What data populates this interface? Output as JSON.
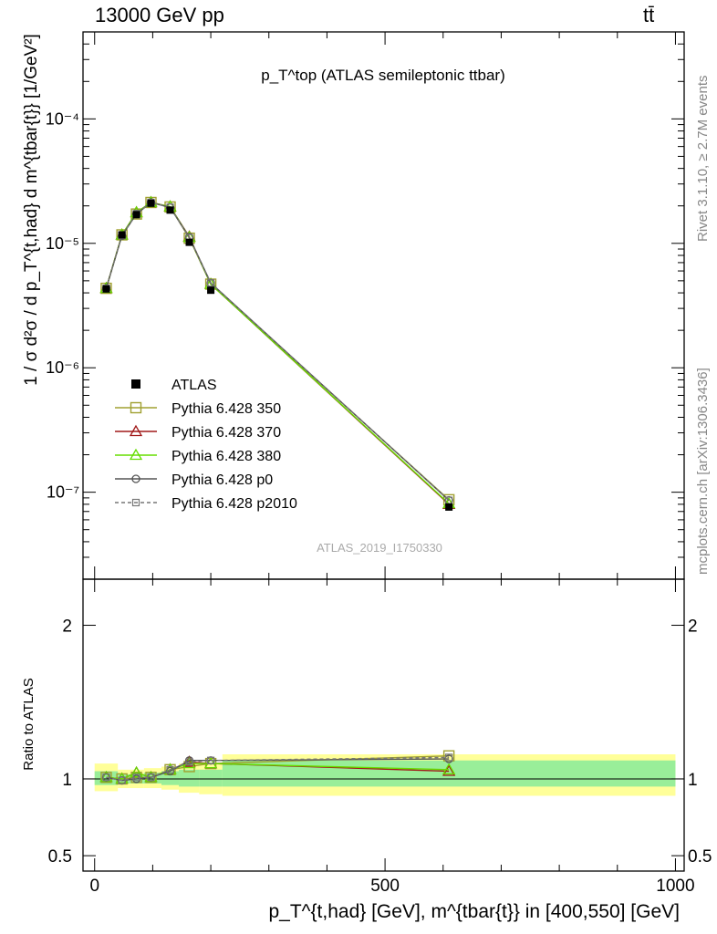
{
  "header": {
    "left": "13000 GeV pp",
    "right": "tt̄"
  },
  "side_labels": {
    "rivet": "Rivet 3.1.10, ≥ 2.7M events",
    "mcplots": "mcplots.cern.ch [arXiv:1306.3436]"
  },
  "chart_data": {
    "type": "line",
    "title": "p_T^top (ATLAS semileptonic ttbar)",
    "analysis_id": "ATLAS_2019_I1750330",
    "ylabel": "1 / σ d²σ / d p_T^{t,had} d m^{tbar{t}} [1/GeV²]",
    "xlabel": "p_T^{t,had} [GeV], m^{tbar{t}} in [400,550] [GeV]",
    "ratio_ylabel": "Ratio to ATLAS",
    "xlim": [
      -20,
      1015
    ],
    "ylim": [
      2e-08,
      0.0005
    ],
    "yscale": "log",
    "ratio_ylim": [
      0.4,
      2.3
    ],
    "xticks": [
      0,
      500,
      1000
    ],
    "yticks_main": [
      {
        "value": 1e-07,
        "label": "10⁻⁷"
      },
      {
        "value": 1e-06,
        "label": "10⁻⁶"
      },
      {
        "value": 1e-05,
        "label": "10⁻⁵"
      },
      {
        "value": 0.0001,
        "label": "10⁻⁴"
      }
    ],
    "yticks_ratio": [
      {
        "value": 0.5,
        "label": "0.5"
      },
      {
        "value": 1,
        "label": "1"
      },
      {
        "value": 2,
        "label": "2"
      }
    ],
    "legend_position": "lower-left",
    "x": [
      20,
      47,
      72,
      97,
      130,
      163,
      200,
      610
    ],
    "bin_edges": [
      0,
      40,
      60,
      85,
      115,
      145,
      180,
      220,
      1000
    ],
    "data": {
      "name": "ATLAS",
      "values": [
        4.3e-06,
        1.17e-05,
        1.7e-05,
        2.1e-05,
        1.85e-05,
        1.02e-05,
        4.2e-06,
        7.6e-08
      ]
    },
    "bands": {
      "stat": [
        [
          0.96,
          1.05
        ],
        [
          0.97,
          1.03
        ],
        [
          0.97,
          1.03
        ],
        [
          0.97,
          1.04
        ],
        [
          0.96,
          1.05
        ],
        [
          0.95,
          1.06
        ],
        [
          0.95,
          1.06
        ],
        [
          0.95,
          1.12
        ]
      ],
      "total": [
        [
          0.92,
          1.1
        ],
        [
          0.94,
          1.06
        ],
        [
          0.94,
          1.06
        ],
        [
          0.94,
          1.07
        ],
        [
          0.93,
          1.08
        ],
        [
          0.91,
          1.1
        ],
        [
          0.9,
          1.1
        ],
        [
          0.89,
          1.16
        ]
      ]
    },
    "series": [
      {
        "name": "Pythia 6.428 350",
        "color": "#a0a030",
        "marker": "square-open",
        "dash": "solid",
        "values": [
          4.35e-06,
          1.17e-05,
          1.72e-05,
          2.13e-05,
          1.96e-05,
          1.1e-05,
          4.7e-06,
          8.7e-08
        ],
        "ratio": [
          1.01,
          1.0,
          1.01,
          1.01,
          1.06,
          1.08,
          1.1,
          1.15
        ]
      },
      {
        "name": "Pythia 6.428 370",
        "color": "#a01818",
        "marker": "triangle-open",
        "dash": "solid",
        "values": [
          4.35e-06,
          1.17e-05,
          1.77e-05,
          2.13e-05,
          1.97e-05,
          1.13e-05,
          4.7e-06,
          8e-08
        ],
        "ratio": [
          1.01,
          1.0,
          1.04,
          1.01,
          1.06,
          1.11,
          1.1,
          1.05
        ]
      },
      {
        "name": "Pythia 6.428 380",
        "color": "#66dd00",
        "marker": "triangle-open",
        "dash": "solid",
        "values": [
          4.35e-06,
          1.17e-05,
          1.77e-05,
          2.13e-05,
          1.97e-05,
          1.12e-05,
          4.7e-06,
          8.1e-08
        ],
        "ratio": [
          1.01,
          1.0,
          1.04,
          1.01,
          1.06,
          1.1,
          1.1,
          1.06
        ]
      },
      {
        "name": "Pythia 6.428 p0",
        "color": "#555555",
        "marker": "circle-open",
        "dash": "solid",
        "values": [
          4.35e-06,
          1.15e-05,
          1.72e-05,
          2.13e-05,
          1.94e-05,
          1.12e-05,
          4.8e-06,
          8.6e-08
        ],
        "ratio": [
          1.01,
          0.99,
          1.0,
          1.01,
          1.05,
          1.12,
          1.12,
          1.13
        ]
      },
      {
        "name": "Pythia 6.428 p2010",
        "color": "#777777",
        "marker": "square-open-small",
        "dash": "dashed",
        "values": [
          4.35e-06,
          1.16e-05,
          1.73e-05,
          2.13e-05,
          1.95e-05,
          1.11e-05,
          4.8e-06,
          8.6e-08
        ],
        "ratio": [
          1.01,
          0.99,
          1.01,
          1.01,
          1.06,
          1.11,
          1.12,
          1.14
        ]
      }
    ]
  }
}
